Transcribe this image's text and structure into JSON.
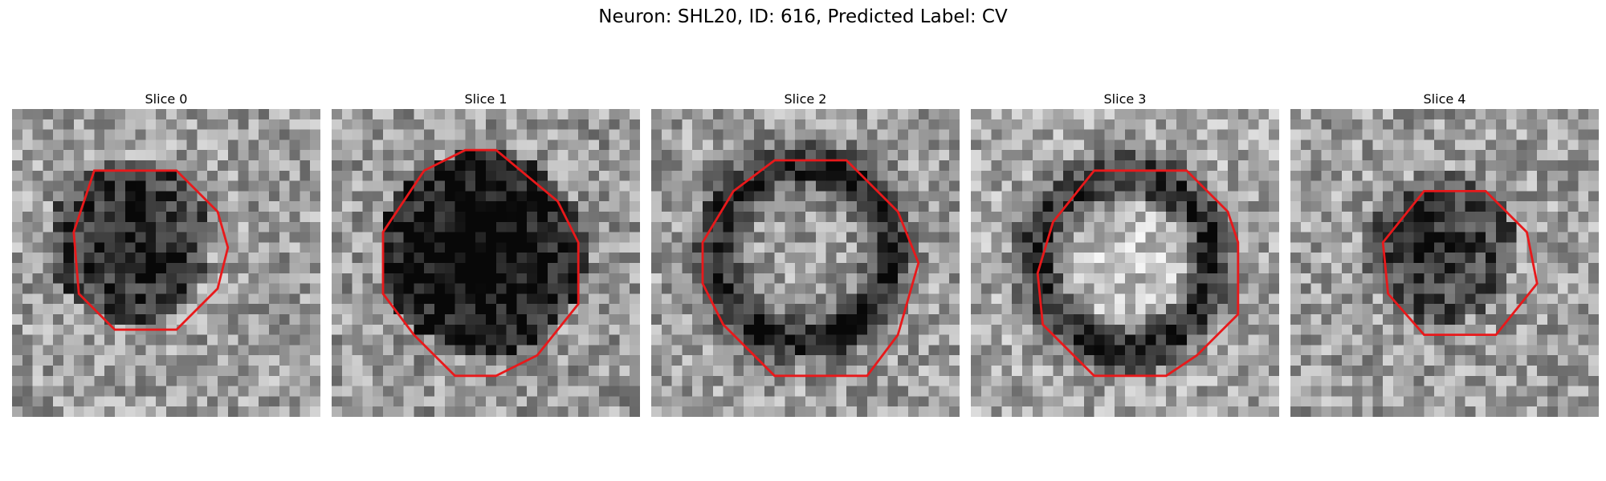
{
  "figure": {
    "title": "Neuron: SHL20, ID: 616, Predicted Label: CV"
  },
  "panels": [
    {
      "label": "Slice 0",
      "image": "grayscale microscopy patch, dark roughly circular cell in center",
      "contour_color": "#e8191b"
    },
    {
      "label": "Slice 1",
      "image": "grayscale microscopy patch, large dark ring-shaped cell",
      "contour_color": "#e8191b"
    },
    {
      "label": "Slice 2",
      "image": "grayscale microscopy patch, dark ring with lighter center",
      "contour_color": "#e8191b"
    },
    {
      "label": "Slice 3",
      "image": "grayscale microscopy patch, dark ring with bright center",
      "contour_color": "#e8191b"
    },
    {
      "label": "Slice 4",
      "image": "grayscale microscopy patch, dark cell outlined in upper right",
      "contour_color": "#e8191b"
    }
  ]
}
